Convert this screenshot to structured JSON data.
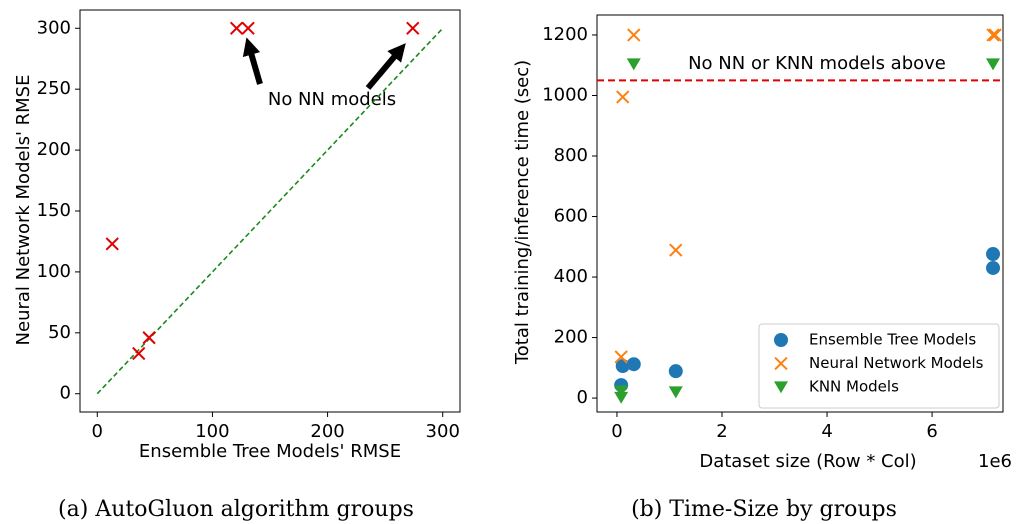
{
  "chart_data": [
    {
      "type": "scatter",
      "xlabel": "Ensemble Tree Models' RMSE",
      "ylabel": "Neural Network Models' RMSE",
      "caption": "(a) AutoGluon algorithm groups",
      "annotation": "No NN models",
      "xlim": [
        -15,
        315
      ],
      "ylim": [
        -15,
        315
      ],
      "xticks": [
        0,
        100,
        200,
        300
      ],
      "yticks": [
        0,
        50,
        100,
        150,
        200,
        250,
        300
      ],
      "series": [
        {
          "color": "#e00000",
          "marker": "x",
          "x": [
            13,
            36,
            45,
            121,
            131,
            274
          ],
          "values": [
            123,
            33,
            46,
            300,
            300,
            300
          ]
        }
      ],
      "ref_line": {
        "color": "#1a8a1a",
        "x": [
          0,
          300
        ],
        "y": [
          0,
          300
        ]
      }
    },
    {
      "type": "scatter",
      "xlabel": "Dataset size (Row * Col)",
      "ylabel": "Total training/inference time (sec)",
      "caption": "(b) Time-Size by groups",
      "annotation": "No NN or KNN models above",
      "x_offset_label": "1e6",
      "xlim": [
        -0.38,
        7.35
      ],
      "ylim": [
        -46,
        1266
      ],
      "xticks": [
        0,
        2,
        4,
        6
      ],
      "yticks": [
        0,
        200,
        400,
        600,
        800,
        1000,
        1200
      ],
      "legend": "lower right",
      "series": [
        {
          "name": "Ensemble Tree Models",
          "color": "#1f77b4",
          "marker": "circle",
          "x": [
            0.08,
            0.11,
            0.32,
            1.12,
            7.16,
            7.16
          ],
          "values": [
            43,
            106,
            112,
            89,
            476,
            430
          ]
        },
        {
          "name": "Neural Network Models",
          "color": "#ff7f0e",
          "marker": "x",
          "x": [
            0.08,
            0.11,
            0.32,
            1.12,
            7.16,
            7.2
          ],
          "values": [
            136,
            995,
            1200,
            489,
            1200,
            1200
          ]
        },
        {
          "name": "KNN Models",
          "color": "#2ca02c",
          "marker": "triangle",
          "x": [
            0.08,
            0.08,
            0.32,
            1.12,
            7.16
          ],
          "values": [
            23,
            2,
            1104,
            20,
            1104
          ]
        }
      ],
      "hline": {
        "color": "#e00000",
        "value": 1050
      }
    }
  ]
}
